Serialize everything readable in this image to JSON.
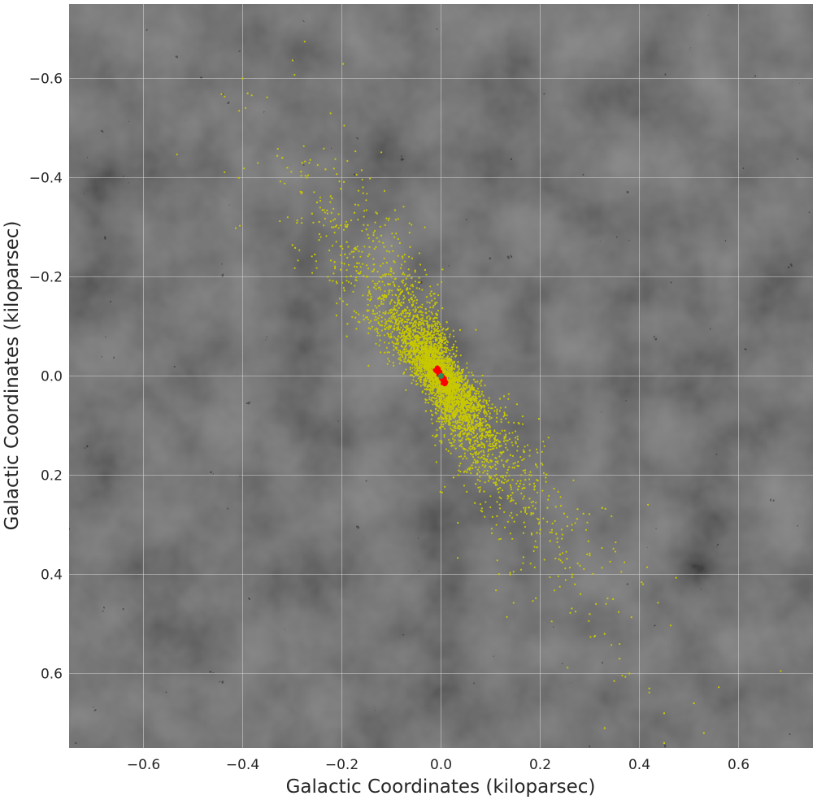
{
  "chart_data": {
    "type": "scatter",
    "title": "",
    "xlabel": "Galactic Coordinates (kiloparsec)",
    "ylabel": "Galactic Coordinates (kiloparsec)",
    "xlim": [
      -0.75,
      0.75
    ],
    "ylim": [
      -0.75,
      0.75
    ],
    "y_inverted": true,
    "grid": true,
    "background": "grayscale sky image",
    "xticks": [
      -0.6,
      -0.4,
      -0.2,
      0.0,
      0.2,
      0.4,
      0.6
    ],
    "yticks": [
      -0.6,
      -0.4,
      -0.2,
      0.0,
      0.2,
      0.4,
      0.6
    ],
    "xtick_labels": [
      "−0.6",
      "−0.4",
      "−0.2",
      "0.0",
      "0.2",
      "0.4",
      "0.6"
    ],
    "ytick_labels": [
      "−0.6",
      "−0.4",
      "−0.2",
      "0.0",
      "0.2",
      "0.4",
      "0.6"
    ],
    "series": [
      {
        "color": "#c8c800",
        "distribution": {
          "center": [
            0.0,
            0.0
          ],
          "major_axis_direction": [
            0.54,
            0.84
          ],
          "extent_x": [
            -0.4,
            0.55
          ],
          "extent_y": [
            -0.6,
            0.75
          ]
        },
        "points": [
          {
            "x": -0.4,
            "y": -0.6
          },
          {
            "x": -0.39,
            "y": -0.57
          },
          {
            "x": -0.32,
            "y": -0.44
          },
          {
            "x": -0.31,
            "y": -0.42
          },
          {
            "x": -0.28,
            "y": -0.43
          },
          {
            "x": -0.27,
            "y": -0.4
          },
          {
            "x": -0.25,
            "y": -0.35
          },
          {
            "x": -0.22,
            "y": -0.3
          },
          {
            "x": -0.19,
            "y": -0.27
          },
          {
            "x": -0.17,
            "y": -0.22
          },
          {
            "x": -0.15,
            "y": -0.2
          },
          {
            "x": -0.12,
            "y": -0.15
          },
          {
            "x": -0.1,
            "y": -0.12
          },
          {
            "x": -0.19,
            "y": -0.08
          },
          {
            "x": -0.08,
            "y": -0.06
          },
          {
            "x": -0.05,
            "y": -0.05
          },
          {
            "x": -0.03,
            "y": -0.02
          },
          {
            "x": 0.02,
            "y": 0.04
          },
          {
            "x": 0.05,
            "y": 0.08
          },
          {
            "x": 0.08,
            "y": 0.12
          },
          {
            "x": 0.1,
            "y": 0.17
          },
          {
            "x": 0.14,
            "y": 0.22
          },
          {
            "x": 0.17,
            "y": 0.27
          },
          {
            "x": 0.2,
            "y": 0.31
          },
          {
            "x": 0.24,
            "y": 0.36
          },
          {
            "x": 0.27,
            "y": 0.42
          },
          {
            "x": 0.3,
            "y": 0.48
          },
          {
            "x": 0.33,
            "y": 0.52
          },
          {
            "x": 0.36,
            "y": 0.57
          },
          {
            "x": 0.38,
            "y": 0.6
          },
          {
            "x": 0.42,
            "y": 0.63
          },
          {
            "x": 0.45,
            "y": 0.68
          },
          {
            "x": 0.51,
            "y": 0.66
          },
          {
            "x": 0.53,
            "y": 0.72
          },
          {
            "x": 0.45,
            "y": 0.74
          },
          {
            "x": 0.33,
            "y": 0.71
          }
        ]
      },
      {
        "color": "#ff0000",
        "distribution": {
          "center": [
            0.0,
            0.0
          ],
          "major_axis_direction": [
            0.5,
            0.87
          ],
          "extent_x": [
            -0.01,
            0.01
          ],
          "extent_y": [
            -0.01,
            0.02
          ]
        }
      },
      {
        "color": "#2e8b57",
        "points": [
          {
            "x": 0.0,
            "y": 0.0
          }
        ]
      }
    ]
  }
}
